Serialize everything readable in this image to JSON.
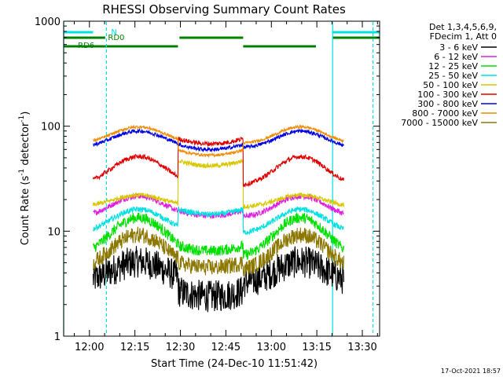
{
  "chart_data": {
    "type": "line",
    "title": "RHESSI Observing Summary Count Rates",
    "xlabel": "Start Time (24-Dec-10 11:51:42)",
    "ylabel_main": "Count Rate (s",
    "ylabel_sup1": "-1",
    "ylabel_mid": " detector",
    "ylabel_sup2": "-1",
    "ylabel_end": ")",
    "y_scale": "log",
    "ylim": [
      1,
      1000
    ],
    "xlim_minutes_after_1151": [
      -0.2,
      104
    ],
    "x_ticks": [
      {
        "label": "12:00",
        "minutes": 8.3
      },
      {
        "label": "12:15",
        "minutes": 23.3
      },
      {
        "label": "12:30",
        "minutes": 38.3
      },
      {
        "label": "12:45",
        "minutes": 53.3
      },
      {
        "label": "13:00",
        "minutes": 68.3
      },
      {
        "label": "13:15",
        "minutes": 83.3
      },
      {
        "label": "13:30",
        "minutes": 98.3
      }
    ],
    "y_ticks": [
      {
        "label": "1",
        "value": 1
      },
      {
        "label": "10",
        "value": 10
      },
      {
        "label": "100",
        "value": 100
      },
      {
        "label": "1000",
        "value": 1000
      }
    ],
    "legend_header": [
      "Det 1,3,4,5,6,9,",
      "FDecim 1, Att 0"
    ],
    "legend_position": "right",
    "series": [
      {
        "name": "3 - 6 keV",
        "color": "#000000",
        "base": 3.2,
        "amp": 1.6,
        "gap_level": 2.4,
        "jitter": 0.35
      },
      {
        "name": "6 - 12 keV",
        "color": "#e020e0",
        "base": 13.5,
        "amp": 1.6,
        "gap_level": 14.0,
        "jitter": 0.06
      },
      {
        "name": "12 - 25 keV",
        "color": "#00e000",
        "base": 5.6,
        "amp": 2.4,
        "gap_level": 6.5,
        "jitter": 0.12
      },
      {
        "name": "25 - 50 keV",
        "color": "#00e0e0",
        "base": 9.5,
        "amp": 1.7,
        "gap_level": 14.5,
        "jitter": 0.06
      },
      {
        "name": "50 - 100 keV",
        "color": "#d8c800",
        "base": 17.0,
        "amp": 1.3,
        "gap_level": 42.0,
        "jitter": 0.05
      },
      {
        "name": "100 - 300 keV",
        "color": "#e00000",
        "base": 27.0,
        "amp": 1.9,
        "gap_level": 68.0,
        "jitter": 0.05
      },
      {
        "name": "300 - 800 keV",
        "color": "#0000e0",
        "base": 62.0,
        "amp": 1.45,
        "gap_level": 60.0,
        "jitter": 0.04
      },
      {
        "name": "800 - 7000 keV",
        "color": "#f08c00",
        "base": 68.0,
        "amp": 1.45,
        "gap_level": 53.0,
        "jitter": 0.03
      },
      {
        "name": "7000 - 15000 keV",
        "color": "#8c7800",
        "base": 4.2,
        "amp": 2.2,
        "gap_level": 4.5,
        "jitter": 0.18
      }
    ],
    "flag_bars": [
      {
        "label": "N",
        "color": "#00e0e0",
        "level": "top",
        "segments": [
          [
            -0.2,
            9.5
          ],
          [
            88.5,
            104
          ]
        ]
      },
      {
        "label": "RD0",
        "color": "#008000",
        "level": "mid",
        "segments": [
          [
            -0.2,
            13.5
          ],
          [
            38,
            59
          ],
          [
            88.5,
            104
          ]
        ]
      },
      {
        "label": "RD6",
        "color": "#008000",
        "level": "low",
        "segments": [
          [
            -0.2,
            13.5
          ],
          [
            13.5,
            37.5
          ],
          [
            59,
            83
          ]
        ]
      }
    ],
    "vlines": [
      {
        "minutes": -0.2,
        "style": "solid",
        "color": "#00e0e0"
      },
      {
        "minutes": 13.9,
        "style": "dashed",
        "color": "#00e0e0"
      },
      {
        "minutes": 88.5,
        "style": "solid",
        "color": "#00e0e0"
      },
      {
        "minutes": 101.8,
        "style": "dashed",
        "color": "#00e0e0"
      }
    ],
    "data_window_minutes": [
      9.5,
      92.2
    ],
    "gap_window_minutes": [
      37.5,
      59.0
    ],
    "peaks_minutes": [
      24.5,
      78.0
    ]
  },
  "footer": {
    "date": "17-Oct-2021 18:57"
  }
}
